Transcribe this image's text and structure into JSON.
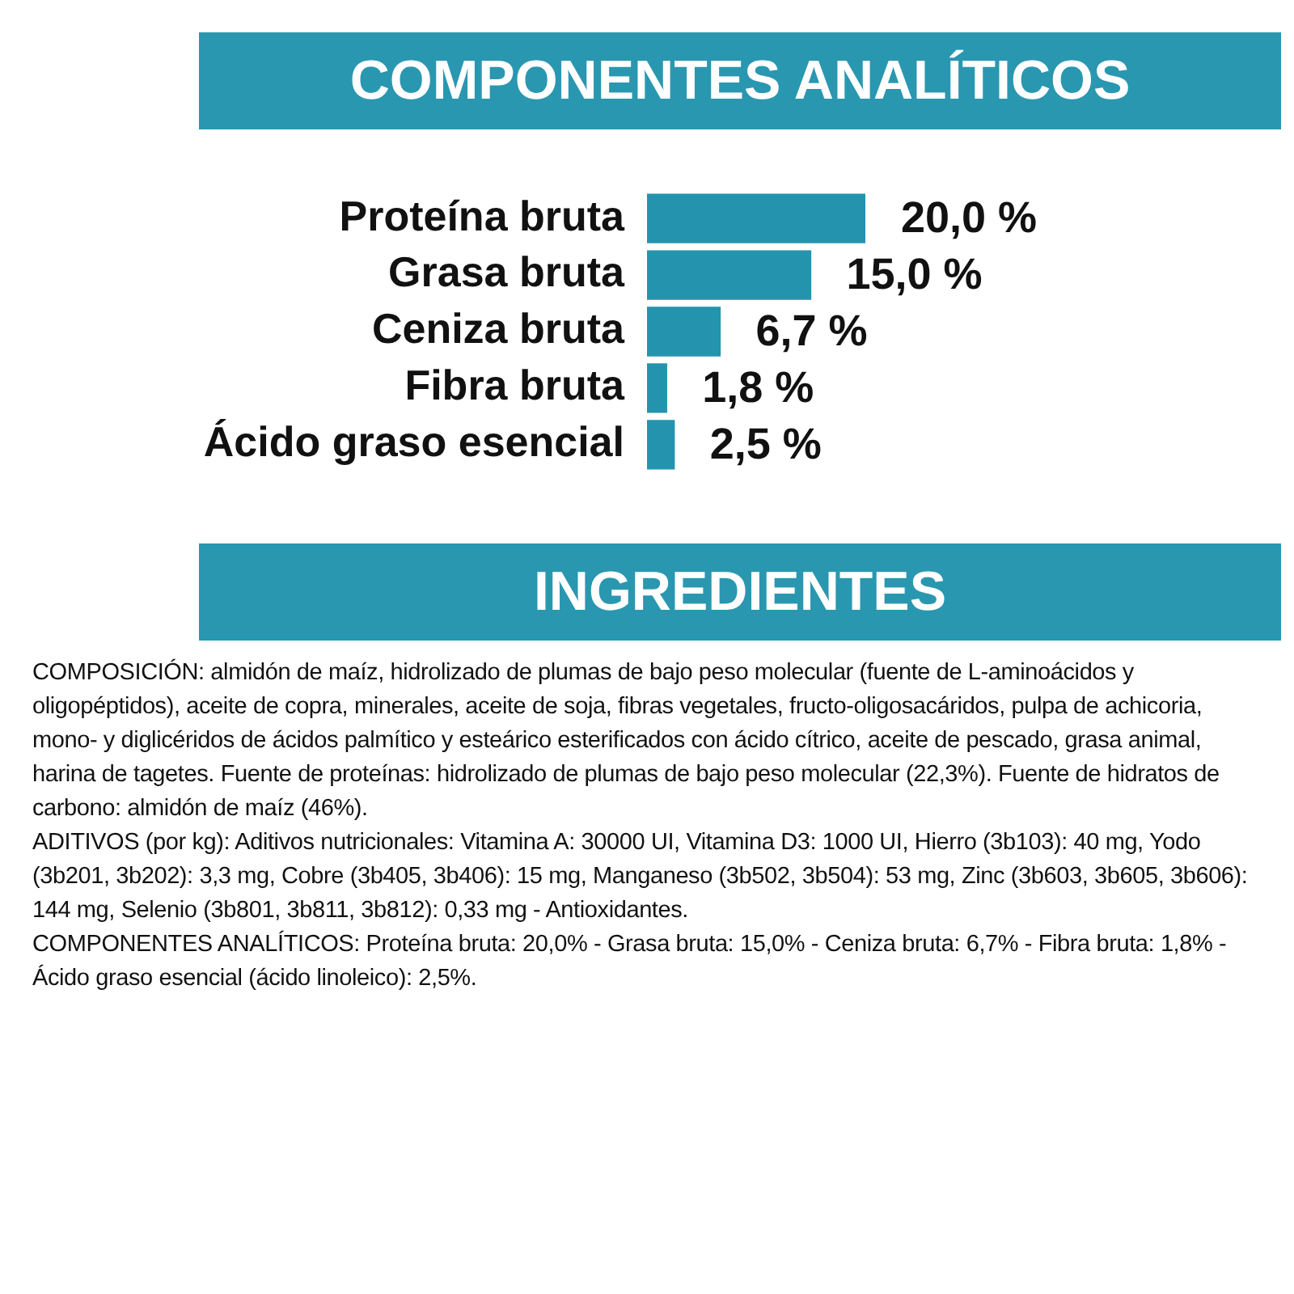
{
  "chart_data": {
    "type": "bar",
    "orientation": "horizontal",
    "title": "COMPONENTES ANALÍTICOS",
    "categories": [
      "Proteína bruta",
      "Grasa bruta",
      "Ceniza bruta",
      "Fibra bruta",
      "Ácido graso esencial"
    ],
    "values": [
      20.0,
      15.0,
      6.7,
      1.8,
      2.5
    ],
    "value_labels": [
      "20,0 %",
      "15,0 %",
      "6,7 %",
      "1,8 %",
      "2,5 %"
    ],
    "color": "#2494ae",
    "tick_labels": "y",
    "annotations": [
      "INGREDIENTES",
      "COMPOSICIÓN: almidón de maíz, hidrolizado de plumas de bajo peso molecular (fuente de L-aminoácidos y oligopéptidos), aceite de copra, minerales, aceite de soja, fibras vegetales, fructo-oligosacáridos, pulpa de achicoria, mono- y diglicéridos de ácidos palmítico y esteárico esterificados con ácido cítrico, aceite de pescado, grasa animal, harina de tagetes. Fuente de proteínas: hidrolizado de plumas de bajo peso molecular (22,3%). Fuente de hidratos de carbono: almidón de maíz (46%).",
      "ADITIVOS (por kg): Aditivos nutricionales: Vitamina A: 30000 UI, Vitamina D3: 1000 UI, Hierro (3b103): 40 mg, Yodo (3b201, 3b202): 3,3 mg, Cobre (3b405, 3b406): 15 mg, Manganeso (3b502, 3b504): 53 mg, Zinc (3b603, 3b605, 3b606): 144 mg, Selenio (3b801, 3b811, 3b812): 0,33 mg - Antioxidantes.",
      "COMPONENTES ANALÍTICOS: Proteína bruta: 20,0% - Grasa bruta: 15,0% - Ceniza bruta: 6,7% - Fibra bruta: 1,8% - Ácido graso esencial (ácido linoleico): 2,5%."
    ]
  }
}
